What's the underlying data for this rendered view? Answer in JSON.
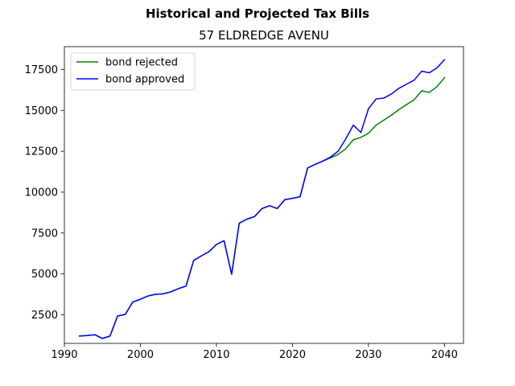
{
  "chart_data": {
    "type": "line",
    "suptitle": "Historical and Projected Tax Bills",
    "title": "57 ELDREDGE AVENU",
    "xlabel": "",
    "ylabel": "",
    "xlim": [
      1990,
      2042.5
    ],
    "ylim": [
      750,
      18900
    ],
    "xticks": [
      1990,
      2000,
      2010,
      2020,
      2030,
      2040
    ],
    "yticks": [
      2500,
      5000,
      7500,
      10000,
      12500,
      15000,
      17500
    ],
    "grid": false,
    "legend_position": "top-left",
    "series": [
      {
        "name": "bond rejected",
        "color": "#008000",
        "x": [
          1992,
          1993,
          1994,
          1995,
          1996,
          1997,
          1998,
          1999,
          2000,
          2001,
          2002,
          2003,
          2004,
          2005,
          2006,
          2007,
          2008,
          2009,
          2010,
          2011,
          2012,
          2013,
          2014,
          2015,
          2016,
          2017,
          2018,
          2019,
          2020,
          2021,
          2022,
          2023,
          2024,
          2025,
          2026,
          2027,
          2028,
          2029,
          2030,
          2031,
          2032,
          2033,
          2034,
          2035,
          2036,
          2037,
          2038,
          2039,
          2040
        ],
        "values": [
          1200,
          1230,
          1280,
          1050,
          1200,
          2430,
          2520,
          3280,
          3450,
          3650,
          3750,
          3780,
          3900,
          4100,
          4250,
          5820,
          6100,
          6350,
          6800,
          7030,
          4980,
          8100,
          8350,
          8500,
          9000,
          9170,
          9000,
          9540,
          9620,
          9720,
          11480,
          11700,
          11900,
          12100,
          12300,
          12650,
          13200,
          13350,
          13600,
          14100,
          14400,
          14700,
          15050,
          15350,
          15650,
          16200,
          16100,
          16450,
          17000
        ]
      },
      {
        "name": "bond approved",
        "color": "#0000ff",
        "x": [
          1992,
          1993,
          1994,
          1995,
          1996,
          1997,
          1998,
          1999,
          2000,
          2001,
          2002,
          2003,
          2004,
          2005,
          2006,
          2007,
          2008,
          2009,
          2010,
          2011,
          2012,
          2013,
          2014,
          2015,
          2016,
          2017,
          2018,
          2019,
          2020,
          2021,
          2022,
          2023,
          2024,
          2025,
          2026,
          2027,
          2028,
          2029,
          2030,
          2031,
          2032,
          2033,
          2034,
          2035,
          2036,
          2037,
          2038,
          2039,
          2040
        ],
        "values": [
          1200,
          1230,
          1280,
          1050,
          1200,
          2430,
          2520,
          3280,
          3450,
          3650,
          3750,
          3780,
          3900,
          4100,
          4250,
          5820,
          6100,
          6350,
          6800,
          7030,
          4980,
          8100,
          8350,
          8500,
          9000,
          9170,
          9000,
          9540,
          9620,
          9720,
          11480,
          11700,
          11900,
          12150,
          12500,
          13250,
          14100,
          13650,
          15100,
          15700,
          15750,
          16000,
          16350,
          16600,
          16850,
          17400,
          17300,
          17600,
          18100
        ]
      }
    ]
  }
}
